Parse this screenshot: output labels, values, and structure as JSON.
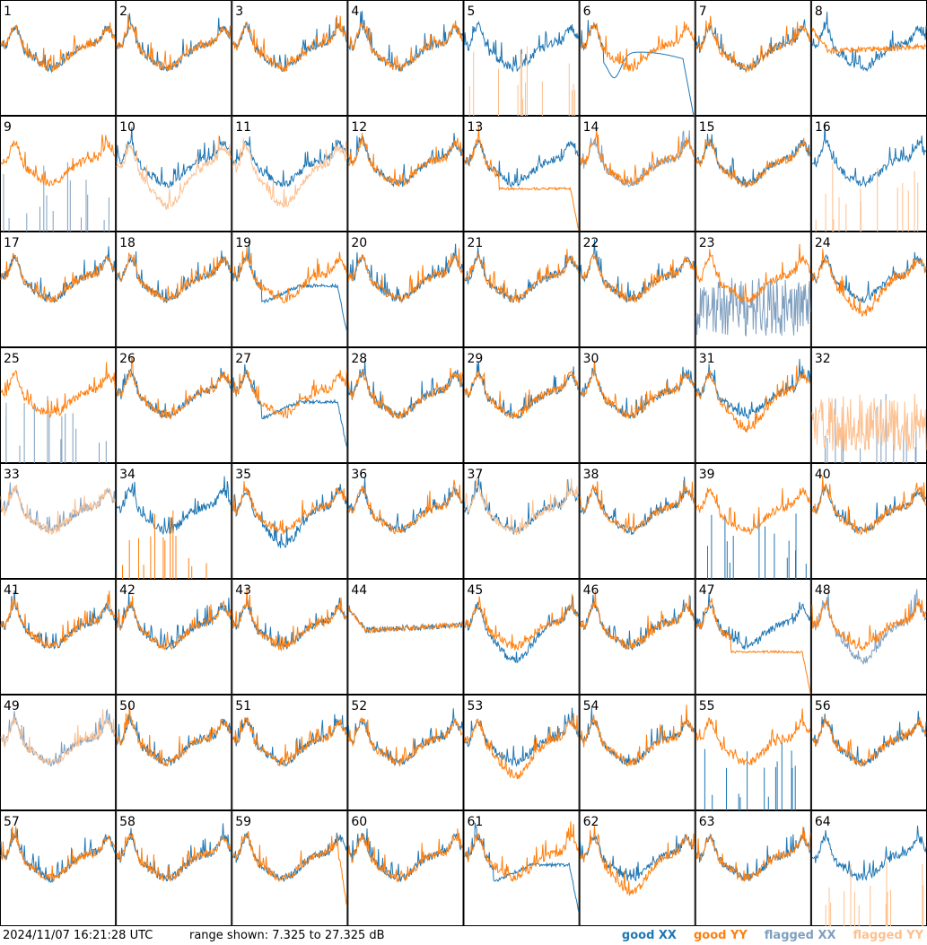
{
  "footer": {
    "timestamp": "2024/11/07 16:21:28 UTC",
    "range_text": "range shown: 7.325 to 27.325 dB"
  },
  "legend": [
    {
      "name": "good XX",
      "color": "#1f77b4"
    },
    {
      "name": "good YY",
      "color": "#ff7f0e"
    },
    {
      "name": "flagged XX",
      "color": "#7f9fbf"
    },
    {
      "name": "flagged YY",
      "color": "#fdc08f"
    }
  ],
  "chart_data": {
    "type": "line",
    "title": "",
    "ylabel": "",
    "ylim": [
      7.325,
      27.325
    ],
    "grid": {
      "rows": 8,
      "cols": 8
    },
    "panels": [
      {
        "label": "1",
        "xx": "good",
        "yy": "good",
        "xx_shape": "normal",
        "yy_shape": "normal"
      },
      {
        "label": "2",
        "xx": "good",
        "yy": "good",
        "xx_shape": "normal",
        "yy_shape": "normal"
      },
      {
        "label": "3",
        "xx": "good",
        "yy": "good",
        "xx_shape": "normal",
        "yy_shape": "normal"
      },
      {
        "label": "4",
        "xx": "good",
        "yy": "good",
        "xx_shape": "normal",
        "yy_shape": "normal"
      },
      {
        "label": "5",
        "xx": "good",
        "yy": "flagged",
        "xx_shape": "normal",
        "yy_shape": "spikes"
      },
      {
        "label": "6",
        "xx": "good",
        "yy": "good",
        "xx_shape": "dip",
        "yy_shape": "normal"
      },
      {
        "label": "7",
        "xx": "good",
        "yy": "good",
        "xx_shape": "normal",
        "yy_shape": "normal"
      },
      {
        "label": "8",
        "xx": "good",
        "yy": "good",
        "xx_shape": "normal",
        "yy_shape": "flat"
      },
      {
        "label": "9",
        "xx": "flagged",
        "yy": "good",
        "xx_shape": "spikes",
        "yy_shape": "normal"
      },
      {
        "label": "10",
        "xx": "good",
        "yy": "flagged",
        "xx_shape": "normal",
        "yy_shape": "low"
      },
      {
        "label": "11",
        "xx": "good",
        "yy": "flagged",
        "xx_shape": "normal",
        "yy_shape": "low"
      },
      {
        "label": "12",
        "xx": "good",
        "yy": "good",
        "xx_shape": "normal",
        "yy_shape": "normal"
      },
      {
        "label": "13",
        "xx": "good",
        "yy": "good",
        "xx_shape": "normal",
        "yy_shape": "flatdrop"
      },
      {
        "label": "14",
        "xx": "flagged",
        "yy": "good",
        "xx_shape": "normal",
        "yy_shape": "normal"
      },
      {
        "label": "15",
        "xx": "good",
        "yy": "good",
        "xx_shape": "normal",
        "yy_shape": "normal"
      },
      {
        "label": "16",
        "xx": "good",
        "yy": "flagged",
        "xx_shape": "normal",
        "yy_shape": "spikes"
      },
      {
        "label": "17",
        "xx": "good",
        "yy": "good",
        "xx_shape": "normal",
        "yy_shape": "normal"
      },
      {
        "label": "18",
        "xx": "good",
        "yy": "good",
        "xx_shape": "normal",
        "yy_shape": "normal"
      },
      {
        "label": "19",
        "xx": "good",
        "yy": "good",
        "xx_shape": "dipdrop",
        "yy_shape": "normal"
      },
      {
        "label": "20",
        "xx": "good",
        "yy": "good",
        "xx_shape": "normal",
        "yy_shape": "normal"
      },
      {
        "label": "21",
        "xx": "good",
        "yy": "good",
        "xx_shape": "normal",
        "yy_shape": "normal"
      },
      {
        "label": "22",
        "xx": "good",
        "yy": "good",
        "xx_shape": "normal",
        "yy_shape": "normal"
      },
      {
        "label": "23",
        "xx": "flagged",
        "yy": "good",
        "xx_shape": "noisy",
        "yy_shape": "normal"
      },
      {
        "label": "24",
        "xx": "good",
        "yy": "good",
        "xx_shape": "normal",
        "yy_shape": "deep"
      },
      {
        "label": "25",
        "xx": "flagged",
        "yy": "good",
        "xx_shape": "spikes",
        "yy_shape": "normal"
      },
      {
        "label": "26",
        "xx": "good",
        "yy": "good",
        "xx_shape": "normal",
        "yy_shape": "normal"
      },
      {
        "label": "27",
        "xx": "good",
        "yy": "good",
        "xx_shape": "dipdrop",
        "yy_shape": "normal"
      },
      {
        "label": "28",
        "xx": "good",
        "yy": "good",
        "xx_shape": "normal",
        "yy_shape": "normal"
      },
      {
        "label": "29",
        "xx": "good",
        "yy": "good",
        "xx_shape": "normal",
        "yy_shape": "normal"
      },
      {
        "label": "30",
        "xx": "good",
        "yy": "good",
        "xx_shape": "normal",
        "yy_shape": "normal"
      },
      {
        "label": "31",
        "xx": "good",
        "yy": "good",
        "xx_shape": "normal",
        "yy_shape": "deep"
      },
      {
        "label": "32",
        "xx": "flagged",
        "yy": "flagged",
        "xx_shape": "spikes",
        "yy_shape": "noisy"
      },
      {
        "label": "33",
        "xx": "flagged",
        "yy": "flagged",
        "xx_shape": "normal",
        "yy_shape": "normal"
      },
      {
        "label": "34",
        "xx": "good",
        "yy": "good",
        "xx_shape": "normal",
        "yy_shape": "spikes"
      },
      {
        "label": "35",
        "xx": "good",
        "yy": "good",
        "xx_shape": "deep",
        "yy_shape": "normal"
      },
      {
        "label": "36",
        "xx": "good",
        "yy": "good",
        "xx_shape": "normal",
        "yy_shape": "normal"
      },
      {
        "label": "37",
        "xx": "good",
        "yy": "flagged",
        "xx_shape": "normal",
        "yy_shape": "normal"
      },
      {
        "label": "38",
        "xx": "good",
        "yy": "good",
        "xx_shape": "normal",
        "yy_shape": "normal"
      },
      {
        "label": "39",
        "xx": "good",
        "yy": "good",
        "xx_shape": "spikes",
        "yy_shape": "normal"
      },
      {
        "label": "40",
        "xx": "good",
        "yy": "good",
        "xx_shape": "normal",
        "yy_shape": "normal"
      },
      {
        "label": "41",
        "xx": "good",
        "yy": "good",
        "xx_shape": "normal",
        "yy_shape": "normal"
      },
      {
        "label": "42",
        "xx": "good",
        "yy": "good",
        "xx_shape": "normal",
        "yy_shape": "normal"
      },
      {
        "label": "43",
        "xx": "good",
        "yy": "good",
        "xx_shape": "normal",
        "yy_shape": "normal"
      },
      {
        "label": "44",
        "xx": "good",
        "yy": "good",
        "xx_shape": "flat",
        "yy_shape": "flat"
      },
      {
        "label": "45",
        "xx": "good",
        "yy": "good",
        "xx_shape": "deep",
        "yy_shape": "normal"
      },
      {
        "label": "46",
        "xx": "good",
        "yy": "good",
        "xx_shape": "normal",
        "yy_shape": "normal"
      },
      {
        "label": "47",
        "xx": "good",
        "yy": "good",
        "xx_shape": "normal",
        "yy_shape": "flatdrop"
      },
      {
        "label": "48",
        "xx": "flagged",
        "yy": "good",
        "xx_shape": "deep",
        "yy_shape": "normal"
      },
      {
        "label": "49",
        "xx": "flagged",
        "yy": "flagged",
        "xx_shape": "normal",
        "yy_shape": "normal"
      },
      {
        "label": "50",
        "xx": "good",
        "yy": "good",
        "xx_shape": "normal",
        "yy_shape": "normal"
      },
      {
        "label": "51",
        "xx": "good",
        "yy": "good",
        "xx_shape": "normal",
        "yy_shape": "normal"
      },
      {
        "label": "52",
        "xx": "good",
        "yy": "good",
        "xx_shape": "normal",
        "yy_shape": "normal"
      },
      {
        "label": "53",
        "xx": "good",
        "yy": "good",
        "xx_shape": "normal",
        "yy_shape": "deep"
      },
      {
        "label": "54",
        "xx": "good",
        "yy": "good",
        "xx_shape": "normal",
        "yy_shape": "normal"
      },
      {
        "label": "55",
        "xx": "good",
        "yy": "good",
        "xx_shape": "spikes",
        "yy_shape": "normal"
      },
      {
        "label": "56",
        "xx": "good",
        "yy": "good",
        "xx_shape": "normal",
        "yy_shape": "normal"
      },
      {
        "label": "57",
        "xx": "good",
        "yy": "good",
        "xx_shape": "normal",
        "yy_shape": "normal"
      },
      {
        "label": "58",
        "xx": "good",
        "yy": "good",
        "xx_shape": "normal",
        "yy_shape": "normal"
      },
      {
        "label": "59",
        "xx": "good",
        "yy": "good",
        "xx_shape": "normal",
        "yy_shape": "drop"
      },
      {
        "label": "60",
        "xx": "good",
        "yy": "good",
        "xx_shape": "normal",
        "yy_shape": "normal"
      },
      {
        "label": "61",
        "xx": "good",
        "yy": "good",
        "xx_shape": "dipdrop",
        "yy_shape": "normal"
      },
      {
        "label": "62",
        "xx": "good",
        "yy": "good",
        "xx_shape": "normal",
        "yy_shape": "deep"
      },
      {
        "label": "63",
        "xx": "good",
        "yy": "good",
        "xx_shape": "normal",
        "yy_shape": "normal"
      },
      {
        "label": "64",
        "xx": "good",
        "yy": "flagged",
        "xx_shape": "normal",
        "yy_shape": "spikes"
      }
    ]
  }
}
